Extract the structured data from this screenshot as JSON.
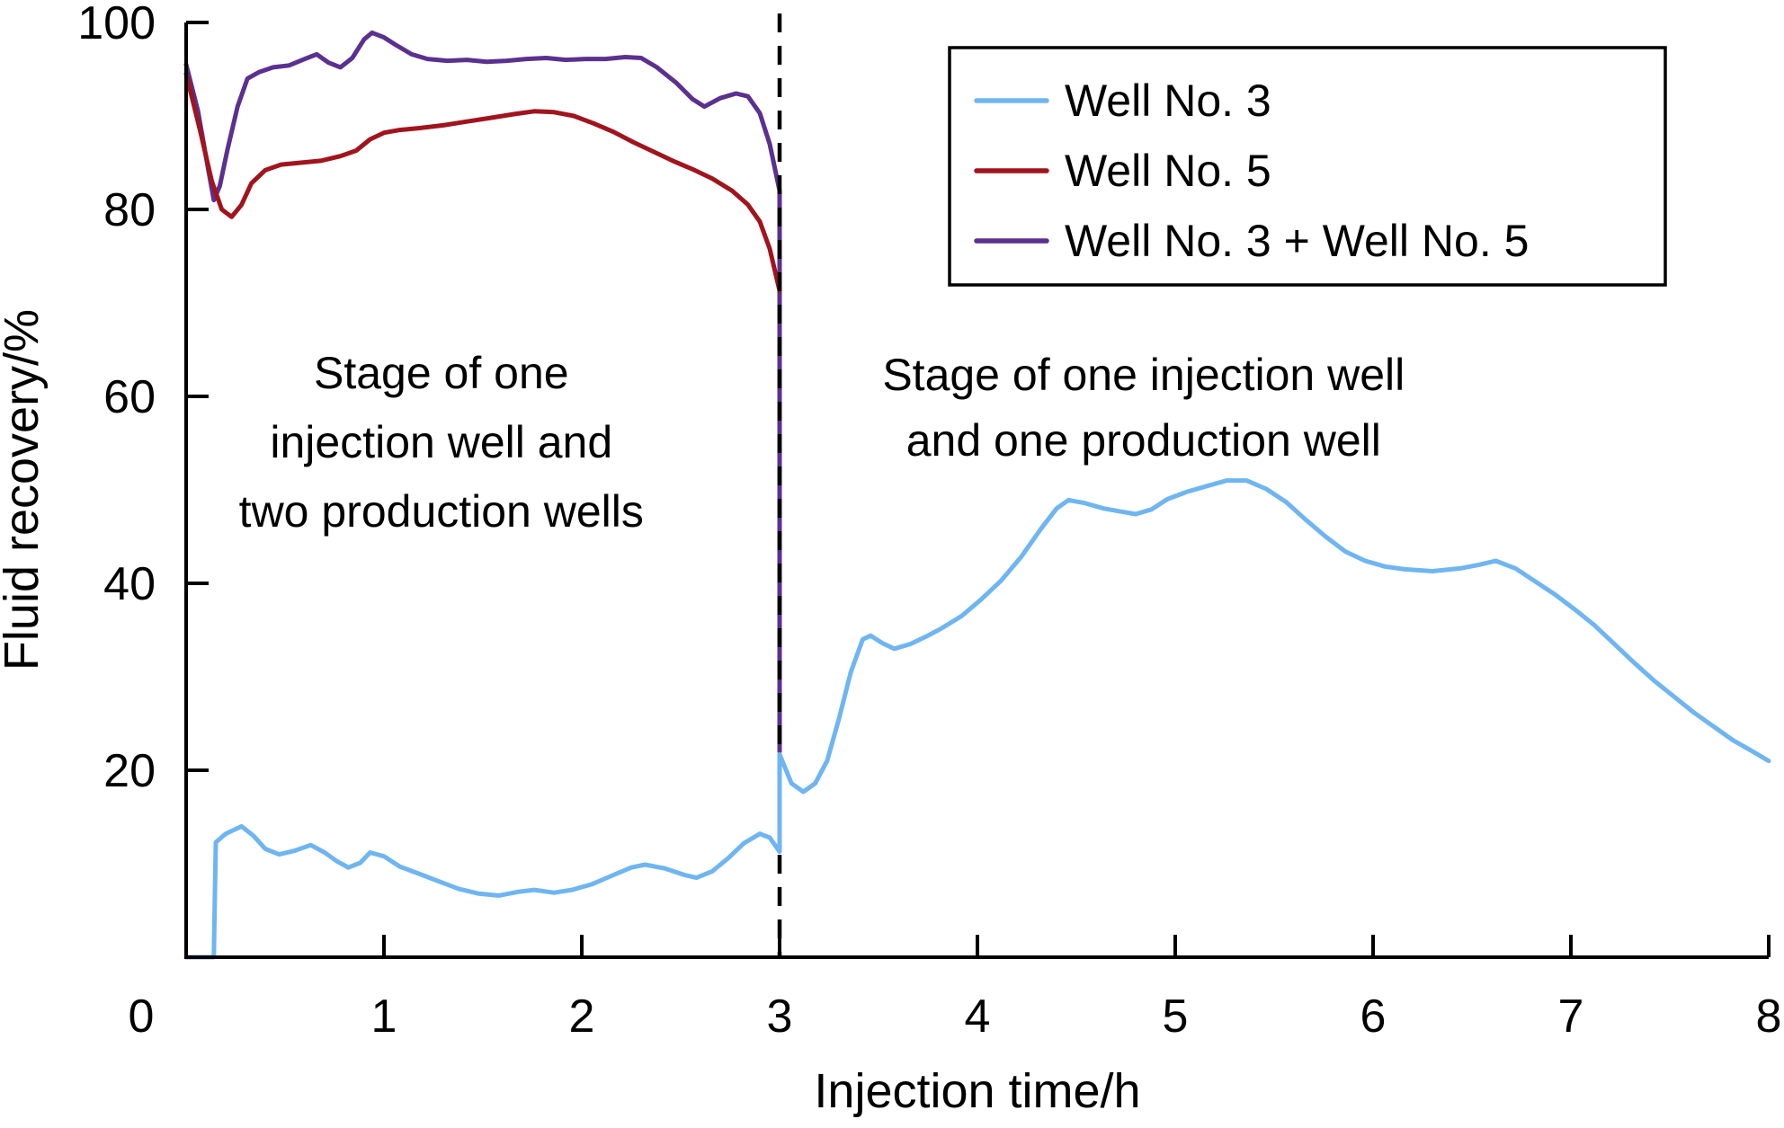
{
  "page": {
    "background": "#FFFFFF"
  },
  "chart_data": {
    "type": "line",
    "title": "",
    "xlabel": "Injection time/h",
    "ylabel": "Fluid recovery/%",
    "xlim": [
      0,
      8
    ],
    "ylim": [
      0,
      100
    ],
    "x_ticks": [
      0,
      1,
      2,
      3,
      4,
      5,
      6,
      7,
      8
    ],
    "y_ticks": [
      20,
      40,
      60,
      80,
      100
    ],
    "grid": false,
    "legend_position": "top-right",
    "axis_color": "#000000",
    "series": [
      {
        "name": "Well No. 3",
        "color": "#6FB5F2",
        "points": [
          [
            0,
            0
          ],
          [
            0.14,
            0
          ],
          [
            0.15,
            12.3
          ],
          [
            0.2,
            13.2
          ],
          [
            0.28,
            14.0
          ],
          [
            0.34,
            13.0
          ],
          [
            0.4,
            11.6
          ],
          [
            0.47,
            11.0
          ],
          [
            0.55,
            11.4
          ],
          [
            0.63,
            12.0
          ],
          [
            0.7,
            11.2
          ],
          [
            0.76,
            10.3
          ],
          [
            0.82,
            9.6
          ],
          [
            0.88,
            10.1
          ],
          [
            0.93,
            11.2
          ],
          [
            1.0,
            10.8
          ],
          [
            1.08,
            9.7
          ],
          [
            1.18,
            8.9
          ],
          [
            1.28,
            8.1
          ],
          [
            1.38,
            7.3
          ],
          [
            1.48,
            6.8
          ],
          [
            1.58,
            6.6
          ],
          [
            1.68,
            7.0
          ],
          [
            1.76,
            7.2
          ],
          [
            1.86,
            6.9
          ],
          [
            1.95,
            7.2
          ],
          [
            2.05,
            7.8
          ],
          [
            2.15,
            8.7
          ],
          [
            2.25,
            9.6
          ],
          [
            2.32,
            9.9
          ],
          [
            2.42,
            9.5
          ],
          [
            2.52,
            8.8
          ],
          [
            2.58,
            8.5
          ],
          [
            2.66,
            9.2
          ],
          [
            2.74,
            10.6
          ],
          [
            2.82,
            12.2
          ],
          [
            2.9,
            13.2
          ],
          [
            2.95,
            12.8
          ],
          [
            3.0,
            11.3
          ],
          [
            3.0,
            21.7
          ],
          [
            3.06,
            18.6
          ],
          [
            3.12,
            17.7
          ],
          [
            3.18,
            18.6
          ],
          [
            3.24,
            21.0
          ],
          [
            3.3,
            25.5
          ],
          [
            3.36,
            30.5
          ],
          [
            3.42,
            34.0
          ],
          [
            3.46,
            34.4
          ],
          [
            3.52,
            33.6
          ],
          [
            3.58,
            33.0
          ],
          [
            3.66,
            33.5
          ],
          [
            3.74,
            34.3
          ],
          [
            3.82,
            35.2
          ],
          [
            3.92,
            36.5
          ],
          [
            4.02,
            38.3
          ],
          [
            4.12,
            40.3
          ],
          [
            4.22,
            42.8
          ],
          [
            4.32,
            45.8
          ],
          [
            4.4,
            48.0
          ],
          [
            4.46,
            48.9
          ],
          [
            4.54,
            48.6
          ],
          [
            4.64,
            48.0
          ],
          [
            4.72,
            47.7
          ],
          [
            4.8,
            47.4
          ],
          [
            4.88,
            47.9
          ],
          [
            4.96,
            49.0
          ],
          [
            5.06,
            49.8
          ],
          [
            5.16,
            50.4
          ],
          [
            5.26,
            51.0
          ],
          [
            5.36,
            51.0
          ],
          [
            5.46,
            50.1
          ],
          [
            5.56,
            48.7
          ],
          [
            5.66,
            46.8
          ],
          [
            5.76,
            45.0
          ],
          [
            5.86,
            43.4
          ],
          [
            5.96,
            42.4
          ],
          [
            6.06,
            41.8
          ],
          [
            6.16,
            41.5
          ],
          [
            6.3,
            41.3
          ],
          [
            6.44,
            41.6
          ],
          [
            6.54,
            42.0
          ],
          [
            6.62,
            42.4
          ],
          [
            6.72,
            41.6
          ],
          [
            6.82,
            40.2
          ],
          [
            6.92,
            38.8
          ],
          [
            7.02,
            37.2
          ],
          [
            7.12,
            35.5
          ],
          [
            7.22,
            33.5
          ],
          [
            7.32,
            31.5
          ],
          [
            7.42,
            29.6
          ],
          [
            7.52,
            27.9
          ],
          [
            7.62,
            26.2
          ],
          [
            7.72,
            24.7
          ],
          [
            7.82,
            23.2
          ],
          [
            7.92,
            22.0
          ],
          [
            8.0,
            21.0
          ]
        ]
      },
      {
        "name": "Well No. 5",
        "color": "#A1141D",
        "points": [
          [
            0,
            94.5
          ],
          [
            0.07,
            88.5
          ],
          [
            0.13,
            83.0
          ],
          [
            0.18,
            80.0
          ],
          [
            0.23,
            79.2
          ],
          [
            0.28,
            80.5
          ],
          [
            0.33,
            82.8
          ],
          [
            0.4,
            84.2
          ],
          [
            0.48,
            84.8
          ],
          [
            0.58,
            85.0
          ],
          [
            0.68,
            85.2
          ],
          [
            0.78,
            85.7
          ],
          [
            0.86,
            86.3
          ],
          [
            0.93,
            87.5
          ],
          [
            1.0,
            88.2
          ],
          [
            1.08,
            88.5
          ],
          [
            1.18,
            88.7
          ],
          [
            1.3,
            89.0
          ],
          [
            1.42,
            89.4
          ],
          [
            1.54,
            89.8
          ],
          [
            1.66,
            90.2
          ],
          [
            1.76,
            90.5
          ],
          [
            1.86,
            90.4
          ],
          [
            1.96,
            90.0
          ],
          [
            2.06,
            89.2
          ],
          [
            2.16,
            88.3
          ],
          [
            2.26,
            87.2
          ],
          [
            2.36,
            86.2
          ],
          [
            2.46,
            85.2
          ],
          [
            2.56,
            84.3
          ],
          [
            2.66,
            83.3
          ],
          [
            2.76,
            82.0
          ],
          [
            2.84,
            80.5
          ],
          [
            2.9,
            78.7
          ],
          [
            2.95,
            75.8
          ],
          [
            3.0,
            71.3
          ]
        ]
      },
      {
        "name": "Well No. 3 + Well No. 5",
        "color": "#5B3090",
        "points": [
          [
            0,
            95.5
          ],
          [
            0.06,
            90.5
          ],
          [
            0.11,
            84.5
          ],
          [
            0.14,
            81.0
          ],
          [
            0.17,
            82.5
          ],
          [
            0.21,
            86.5
          ],
          [
            0.26,
            91.0
          ],
          [
            0.31,
            94.0
          ],
          [
            0.37,
            94.7
          ],
          [
            0.44,
            95.2
          ],
          [
            0.52,
            95.4
          ],
          [
            0.6,
            96.1
          ],
          [
            0.66,
            96.6
          ],
          [
            0.72,
            95.7
          ],
          [
            0.78,
            95.2
          ],
          [
            0.84,
            96.2
          ],
          [
            0.9,
            98.2
          ],
          [
            0.94,
            98.9
          ],
          [
            1.0,
            98.4
          ],
          [
            1.06,
            97.6
          ],
          [
            1.14,
            96.6
          ],
          [
            1.22,
            96.1
          ],
          [
            1.32,
            95.9
          ],
          [
            1.42,
            96.0
          ],
          [
            1.52,
            95.8
          ],
          [
            1.62,
            95.9
          ],
          [
            1.72,
            96.1
          ],
          [
            1.82,
            96.2
          ],
          [
            1.92,
            96.0
          ],
          [
            2.02,
            96.1
          ],
          [
            2.12,
            96.1
          ],
          [
            2.22,
            96.3
          ],
          [
            2.3,
            96.2
          ],
          [
            2.38,
            95.2
          ],
          [
            2.48,
            93.5
          ],
          [
            2.56,
            91.8
          ],
          [
            2.62,
            91.0
          ],
          [
            2.7,
            91.9
          ],
          [
            2.78,
            92.4
          ],
          [
            2.84,
            92.1
          ],
          [
            2.9,
            90.3
          ],
          [
            2.95,
            87.0
          ],
          [
            3.0,
            82.0
          ],
          [
            3.0,
            22.0
          ]
        ]
      }
    ],
    "divider": {
      "x": 3,
      "style": "dashed",
      "color": "#000000"
    },
    "annotations": [
      {
        "x": 1.29,
        "y": 62.5,
        "dy": 7.4,
        "lines": [
          "Stage of one",
          "injection well and",
          "two production wells"
        ]
      },
      {
        "x": 4.84,
        "y": 62.3,
        "dy": 7.0,
        "lines": [
          "Stage of one injection well",
          "and one production well"
        ]
      }
    ]
  }
}
